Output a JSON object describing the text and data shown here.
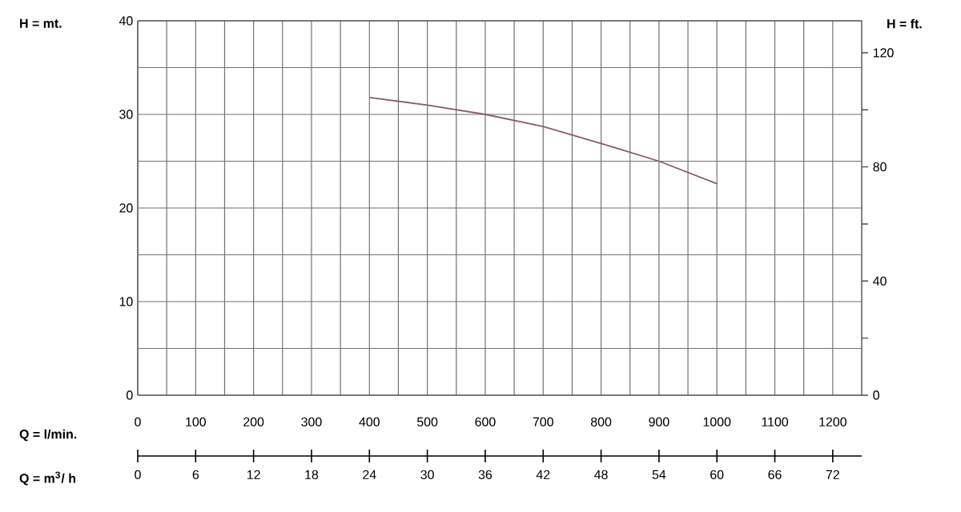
{
  "chart_data": {
    "type": "line",
    "xlabel": "Q = l/min.",
    "x2label": "Q = m$^{3}$/ h",
    "ylabel": "H = mt.",
    "y2label": "H = ft.",
    "x": [
      400,
      500,
      600,
      700,
      800,
      900,
      1000
    ],
    "series": [
      {
        "color": "#8c5c6c",
        "values": [
          31.8,
          31,
          30,
          28.7,
          26.9,
          25,
          22.6
        ]
      }
    ],
    "xlim": [
      0,
      1250
    ],
    "xticks": [
      0,
      {
        "value": 50,
        "label": null
      },
      100,
      {
        "value": 150,
        "label": null
      },
      200,
      {
        "value": 250,
        "label": null
      },
      300,
      {
        "value": 350,
        "label": null
      },
      400,
      {
        "value": 450,
        "label": null
      },
      500,
      {
        "value": 550,
        "label": null
      },
      600,
      {
        "value": 650,
        "label": null
      },
      700,
      {
        "value": 750,
        "label": null
      },
      800,
      {
        "value": 850,
        "label": null
      },
      900,
      {
        "value": 950,
        "label": null
      },
      1000,
      {
        "value": 1050,
        "label": null
      },
      1100,
      {
        "value": 1150,
        "label": null
      },
      1200
    ],
    "x2lim": [
      0,
      75
    ],
    "x2ticks": [
      0,
      6,
      12,
      18,
      24,
      30,
      36,
      42,
      48,
      54,
      60,
      66,
      72
    ],
    "ylim": [
      0,
      40
    ],
    "yticks": [
      0,
      {
        "value": 5,
        "label": null
      },
      10,
      {
        "value": 15,
        "label": null
      },
      20,
      {
        "value": 25,
        "label": null
      },
      30,
      {
        "value": 35,
        "label": null
      },
      40
    ],
    "y2lim": [
      0,
      131.2
    ],
    "y2ticks": [
      0,
      {
        "value": 20,
        "label": null
      },
      40,
      {
        "value": 60,
        "label": null
      },
      80,
      {
        "value": 100,
        "label": null
      },
      120
    ],
    "grid": true,
    "marker": "none",
    "line_style": "solid"
  }
}
